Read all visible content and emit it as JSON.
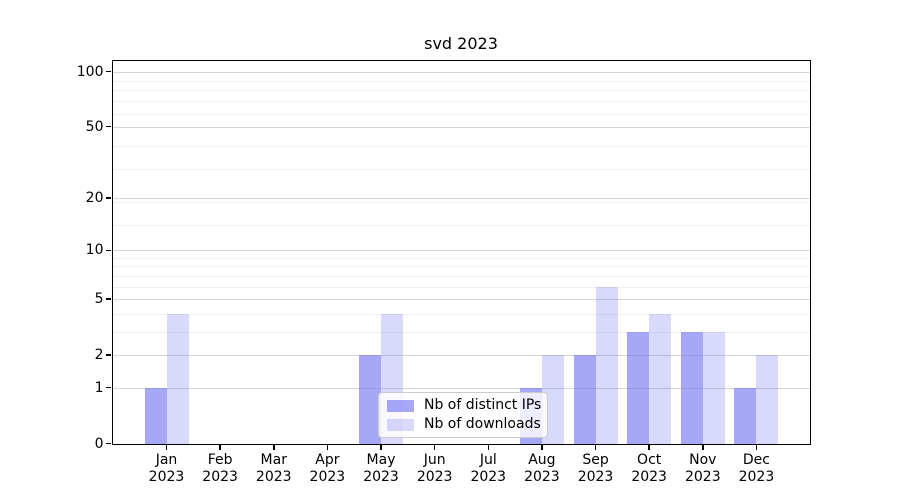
{
  "title": "svd 2023",
  "legend": {
    "items": [
      {
        "label": "Nb of distinct IPs"
      },
      {
        "label": "Nb of downloads"
      }
    ]
  },
  "colors": {
    "ips_observed": "#aaaaf8",
    "downloads_observed": "#dcdcfa",
    "ips_fill": "rgba(116,116,242,0.63)",
    "downloads_fill": "rgba(116,116,242,0.27)",
    "grid_major": "#d4d4d4",
    "grid_minor": "#efefef",
    "legend_border": "#cbcbcb",
    "axis": "#000000"
  },
  "chart_data": {
    "type": "bar",
    "title": "svd 2023",
    "x_months": [
      "Jan",
      "Feb",
      "Mar",
      "Apr",
      "May",
      "Jun",
      "Jul",
      "Aug",
      "Sep",
      "Oct",
      "Nov",
      "Dec"
    ],
    "x_year": "2023",
    "categories": [
      "Jan 2023",
      "Feb 2023",
      "Mar 2023",
      "Apr 2023",
      "May 2023",
      "Jun 2023",
      "Jul 2023",
      "Aug 2023",
      "Sep 2023",
      "Oct 2023",
      "Nov 2023",
      "Dec 2023"
    ],
    "series": [
      {
        "name": "Nb of distinct IPs",
        "values": [
          1,
          0,
          0,
          0,
          2,
          0,
          0,
          1,
          2,
          3,
          3,
          1
        ]
      },
      {
        "name": "Nb of downloads",
        "values": [
          4,
          0,
          0,
          0,
          4,
          0,
          0,
          2,
          6,
          4,
          3,
          2
        ]
      }
    ],
    "yscale": "log1p",
    "yticks": [
      0,
      1,
      2,
      5,
      10,
      20,
      50,
      100
    ],
    "ylim": [
      0,
      115
    ],
    "grid": "both",
    "legend_position": "lower-center-inside"
  }
}
